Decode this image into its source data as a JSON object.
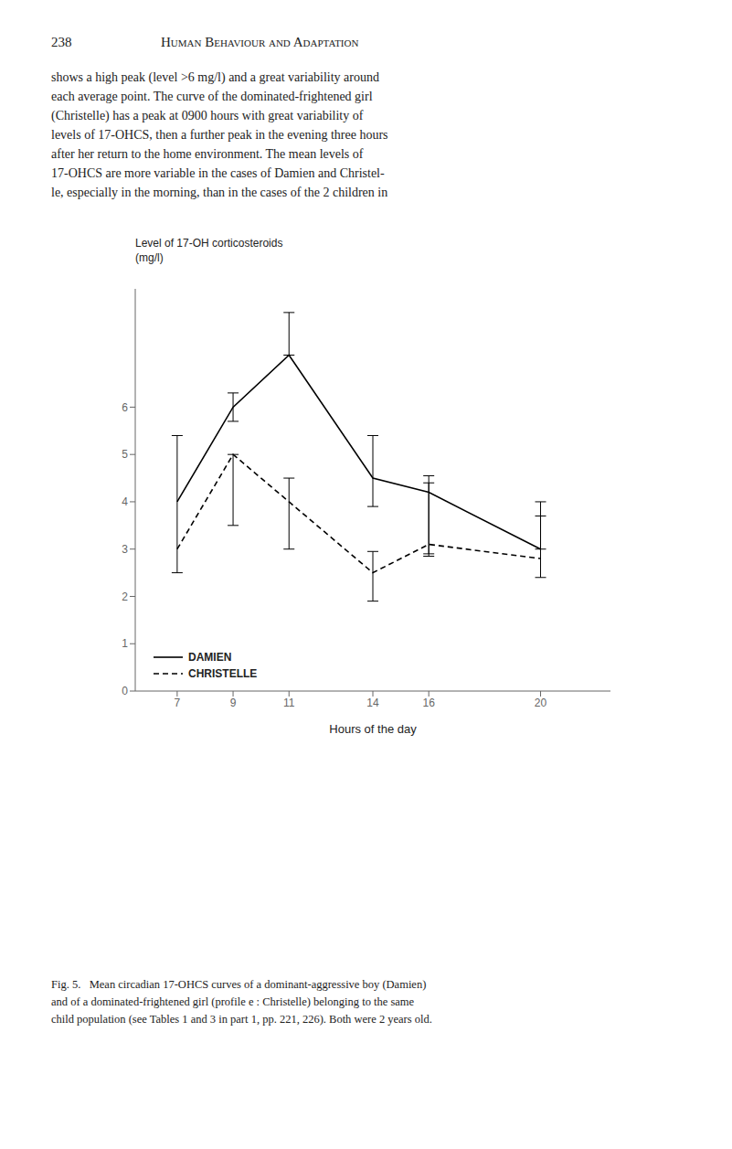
{
  "chart_data": {
    "type": "line",
    "ylabel": [
      "Level of 17-OH corticosteroids",
      "(mg/l)"
    ],
    "xlabel": "Hours of the day",
    "xlim": [
      5.5,
      22.5
    ],
    "ylim": [
      0,
      8.5
    ],
    "xticks": [
      7,
      9,
      11,
      14,
      16,
      20
    ],
    "yticks": [
      0,
      1,
      2,
      3,
      4,
      5,
      6
    ],
    "legend": "lower left",
    "series": [
      {
        "name": "DAMIEN",
        "color": "#000000",
        "line_style": "solid",
        "x": [
          7,
          9,
          11,
          14,
          16,
          20
        ],
        "values": [
          4.0,
          6.0,
          7.1,
          4.5,
          4.2,
          3.0
        ],
        "error_low": [
          1.5,
          0.3,
          0.0,
          0.6,
          1.3,
          0.0
        ],
        "error_high": [
          1.4,
          0.3,
          0.9,
          0.9,
          0.35,
          0.7
        ]
      },
      {
        "name": "CHRISTELLE",
        "color": "#000000",
        "line_style": "dashed",
        "x": [
          7,
          9,
          11,
          14,
          16,
          20
        ],
        "values": [
          3.0,
          5.0,
          4.0,
          2.5,
          3.1,
          2.8
        ],
        "error_low": [
          0.0,
          1.5,
          1.0,
          0.6,
          0.25,
          0.4
        ],
        "error_high": [
          0.0,
          0.0,
          0.5,
          0.45,
          1.3,
          1.2
        ]
      }
    ],
    "header": [
      "238",
      "Human Behaviour and Adaptation"
    ],
    "body_text": [
      "shows a high peak (level >6 mg/l) and a great variability around",
      "each average point. The curve of the dominated-frightened girl",
      "(Christelle) has a peak at 0900 hours with great variability of",
      "levels of 17-OHCS, then a further peak in the evening three hours",
      "after her return to the home environment. The mean levels of",
      "17-OHCS are more variable in the cases of Damien and Christel-",
      "le, especially in the morning, than in the cases of the 2 children in"
    ],
    "caption": [
      "Fig. 5.   Mean circadian 17-OHCS curves of a dominant-aggressive boy (Damien)",
      "and of a dominated-frightened girl (profile e : Christelle) belonging to the same",
      "child population (see Tables 1 and 3 in part 1, pp. 221, 226). Both were 2 years old."
    ]
  }
}
